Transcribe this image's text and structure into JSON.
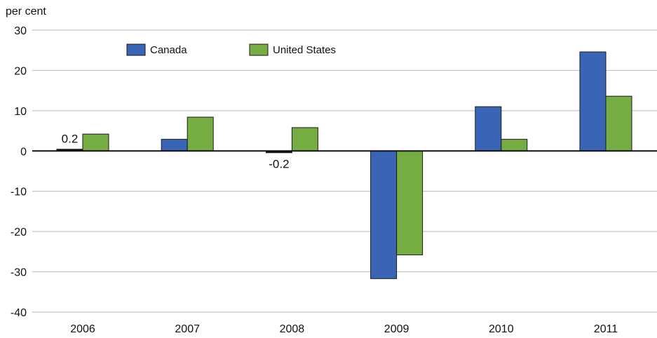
{
  "chart_data": {
    "type": "bar",
    "ylabel": "per cent",
    "categories": [
      "2006",
      "2007",
      "2008",
      "2009",
      "2010",
      "2011"
    ],
    "series": [
      {
        "name": "Canada",
        "color": "#3a64b6",
        "values": [
          0.2,
          2.9,
          -0.2,
          -31.7,
          11.0,
          24.6
        ]
      },
      {
        "name": "United States",
        "color": "#76ad42",
        "values": [
          4.2,
          8.4,
          5.8,
          -25.8,
          2.9,
          13.6
        ]
      }
    ],
    "ylim": [
      -40,
      30
    ],
    "yticks": [
      30,
      20,
      10,
      0,
      -10,
      -20,
      -30,
      -40
    ],
    "grid": true,
    "legend_position": "top-left",
    "data_labels": [
      {
        "series": "Canada",
        "category": "2006",
        "text": "0.2"
      },
      {
        "series": "Canada",
        "category": "2008",
        "text": "-0.2"
      }
    ]
  }
}
